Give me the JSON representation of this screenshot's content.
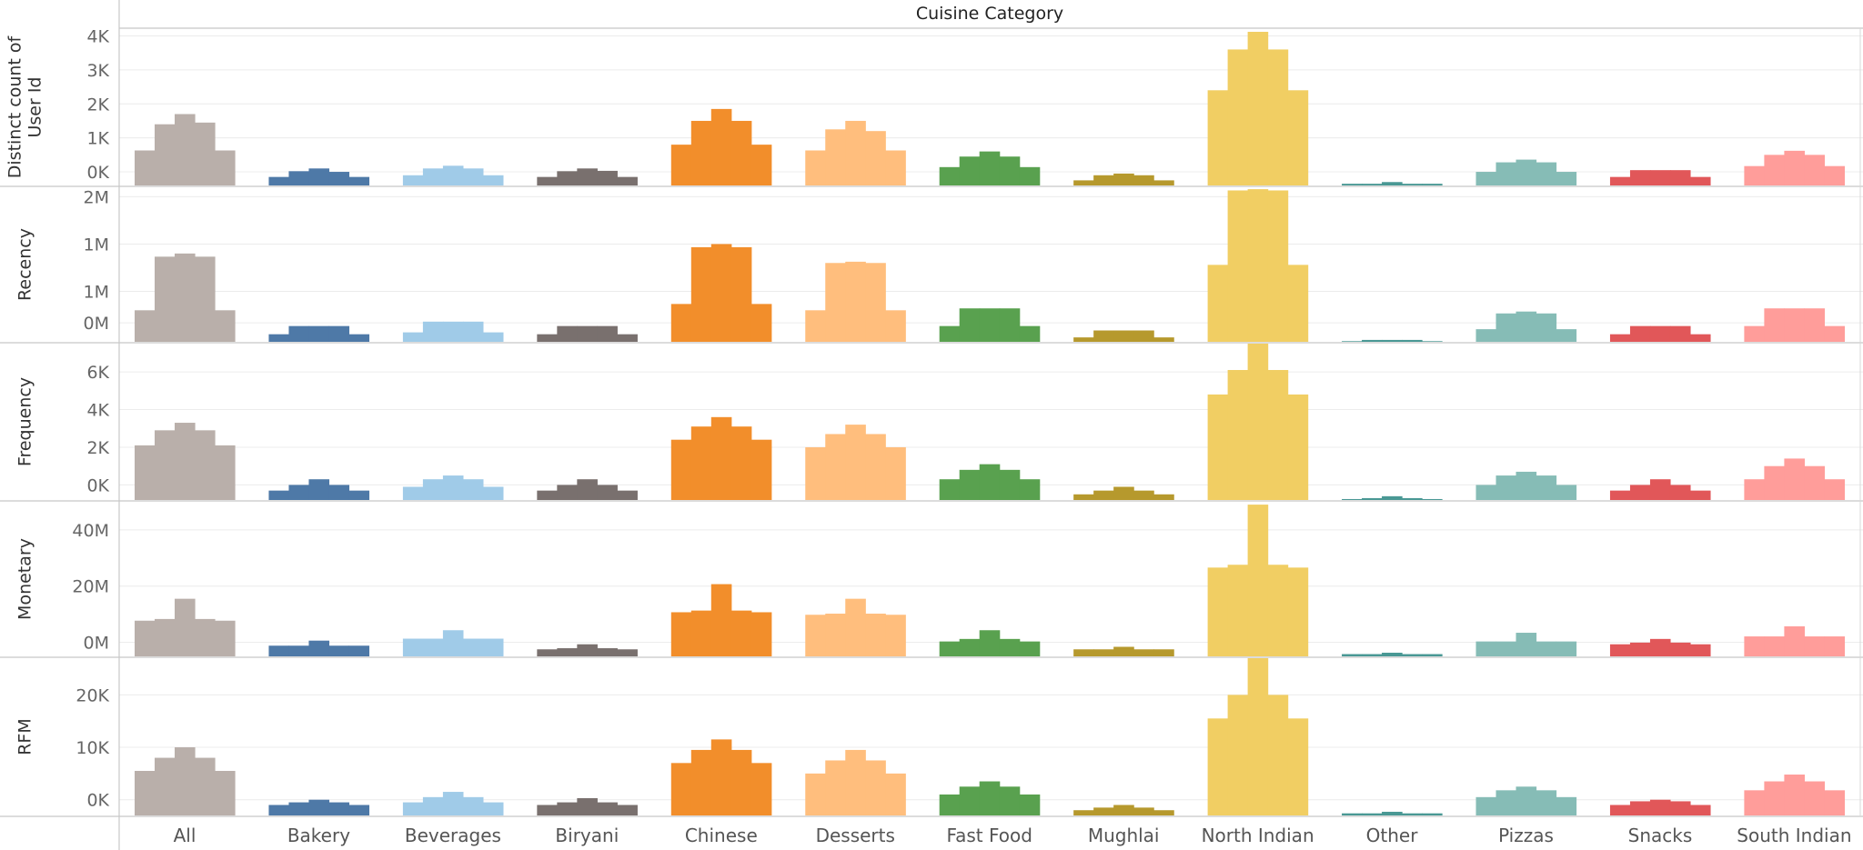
{
  "chart_data": {
    "type": "bar",
    "header": "Cuisine Category",
    "categories": [
      "All",
      "Bakery",
      "Beverages",
      "Biryani",
      "Chinese",
      "Desserts",
      "Fast Food",
      "Mughlai",
      "North Indian",
      "Other",
      "Pizzas",
      "Snacks",
      "South Indian"
    ],
    "colors": [
      "#b9afaa",
      "#4e79a7",
      "#a0cbe8",
      "#79706e",
      "#f28e2b",
      "#ffbe7d",
      "#59a14f",
      "#b6992d",
      "#f1ce63",
      "#499894",
      "#86bcb6",
      "#e15759",
      "#ff9d9a"
    ],
    "bars_per_category": 5,
    "rows": [
      {
        "measure": "Distinct count of User Id",
        "title_lines": [
          "Distinct count of",
          "User Id"
        ],
        "ylim": [
          -0.4,
          4.2
        ],
        "ticks": [
          {
            "value": 0,
            "label": "0K"
          },
          {
            "value": 1,
            "label": "1K"
          },
          {
            "value": 2,
            "label": "2K"
          },
          {
            "value": 3,
            "label": "3K"
          },
          {
            "value": 4,
            "label": "4K"
          }
        ],
        "values": [
          [
            0.63,
            1.4,
            1.7,
            1.45,
            0.63
          ],
          [
            -0.15,
            0.02,
            0.1,
            0.0,
            -0.15
          ],
          [
            -0.1,
            0.1,
            0.18,
            0.1,
            -0.1
          ],
          [
            -0.15,
            0.02,
            0.1,
            0.03,
            -0.15
          ],
          [
            0.8,
            1.5,
            1.85,
            1.5,
            0.8
          ],
          [
            0.63,
            1.25,
            1.5,
            1.2,
            0.63
          ],
          [
            0.14,
            0.45,
            0.6,
            0.45,
            0.14
          ],
          [
            -0.25,
            -0.1,
            -0.05,
            -0.1,
            -0.25
          ],
          [
            2.4,
            3.6,
            4.12,
            3.6,
            2.4
          ],
          [
            -0.35,
            -0.35,
            -0.3,
            -0.35,
            -0.35
          ],
          [
            0.0,
            0.28,
            0.36,
            0.28,
            0.0
          ],
          [
            -0.15,
            0.05,
            0.05,
            0.05,
            -0.15
          ],
          [
            0.17,
            0.5,
            0.62,
            0.5,
            0.17
          ]
        ]
      },
      {
        "measure": "Recency",
        "title_lines": [
          "Recency"
        ],
        "ylim": [
          -0.3,
          2.15
        ],
        "ticks": [
          {
            "value": 0,
            "label": "0M"
          },
          {
            "value": 0.5,
            "label": "1M"
          },
          {
            "value": 1.25,
            "label": "1M"
          },
          {
            "value": 2,
            "label": "2M"
          }
        ],
        "values": [
          [
            0.2,
            1.05,
            1.1,
            1.05,
            0.2
          ],
          [
            -0.18,
            -0.05,
            -0.05,
            -0.05,
            -0.18
          ],
          [
            -0.15,
            0.02,
            0.02,
            0.02,
            -0.15
          ],
          [
            -0.18,
            -0.05,
            -0.05,
            -0.05,
            -0.18
          ],
          [
            0.3,
            1.2,
            1.25,
            1.2,
            0.3
          ],
          [
            0.2,
            0.95,
            0.97,
            0.95,
            0.2
          ],
          [
            -0.05,
            0.23,
            0.23,
            0.23,
            -0.05
          ],
          [
            -0.23,
            -0.12,
            -0.12,
            -0.12,
            -0.23
          ],
          [
            0.92,
            2.1,
            2.12,
            2.1,
            0.92
          ],
          [
            -0.29,
            -0.27,
            -0.27,
            -0.27,
            -0.29
          ],
          [
            -0.1,
            0.15,
            0.18,
            0.15,
            -0.1
          ],
          [
            -0.18,
            -0.05,
            -0.05,
            -0.05,
            -0.18
          ],
          [
            -0.05,
            0.23,
            0.23,
            0.23,
            -0.05
          ]
        ]
      },
      {
        "measure": "Frequency",
        "title_lines": [
          "Frequency"
        ],
        "ylim": [
          -0.8,
          7.5
        ],
        "ticks": [
          {
            "value": 0,
            "label": "0K"
          },
          {
            "value": 2,
            "label": "2K"
          },
          {
            "value": 4,
            "label": "4K"
          },
          {
            "value": 6,
            "label": "6K"
          }
        ],
        "values": [
          [
            2.1,
            2.9,
            3.3,
            2.9,
            2.1
          ],
          [
            -0.3,
            0.0,
            0.3,
            0.0,
            -0.3
          ],
          [
            -0.1,
            0.3,
            0.5,
            0.3,
            -0.1
          ],
          [
            -0.3,
            0.0,
            0.3,
            0.0,
            -0.3
          ],
          [
            2.4,
            3.1,
            3.6,
            3.1,
            2.4
          ],
          [
            2.0,
            2.7,
            3.2,
            2.7,
            2.0
          ],
          [
            0.3,
            0.8,
            1.1,
            0.8,
            0.3
          ],
          [
            -0.5,
            -0.3,
            -0.1,
            -0.3,
            -0.5
          ],
          [
            4.8,
            6.1,
            7.5,
            6.1,
            4.8
          ],
          [
            -0.75,
            -0.7,
            -0.6,
            -0.7,
            -0.75
          ],
          [
            0.0,
            0.5,
            0.7,
            0.5,
            0.0
          ],
          [
            -0.3,
            0.0,
            0.3,
            0.0,
            -0.3
          ],
          [
            0.3,
            1.0,
            1.4,
            1.0,
            0.3
          ]
        ]
      },
      {
        "measure": "Monetary",
        "title_lines": [
          "Monetary"
        ],
        "ylim": [
          -5,
          50
        ],
        "ticks": [
          {
            "value": 0,
            "label": "0M"
          },
          {
            "value": 20,
            "label": "20M"
          },
          {
            "value": 40,
            "label": "40M"
          }
        ],
        "values": [
          [
            7.7,
            8.3,
            15.5,
            8.3,
            7.7
          ],
          [
            -1.2,
            -1.2,
            0.6,
            -1.2,
            -1.2
          ],
          [
            1.3,
            1.3,
            4.3,
            1.3,
            1.3
          ],
          [
            -2.5,
            -2.1,
            -0.7,
            -2.1,
            -2.5
          ],
          [
            10.7,
            11.3,
            20.7,
            11.3,
            10.7
          ],
          [
            9.8,
            10.2,
            15.5,
            10.2,
            9.8
          ],
          [
            0.3,
            1.2,
            4.3,
            1.2,
            0.3
          ],
          [
            -2.5,
            -2.5,
            -1.6,
            -2.5,
            -2.5
          ],
          [
            26.6,
            27.6,
            49.0,
            27.6,
            26.6
          ],
          [
            -4.2,
            -4.2,
            -3.7,
            -4.2,
            -4.2
          ],
          [
            0.3,
            0.3,
            3.4,
            0.3,
            0.3
          ],
          [
            -0.7,
            -0.1,
            1.2,
            -0.1,
            -0.7
          ],
          [
            2.1,
            2.1,
            5.7,
            2.1,
            2.1
          ]
        ]
      },
      {
        "measure": "RFM",
        "title_lines": [
          "RFM"
        ],
        "ylim": [
          -3,
          27
        ],
        "ticks": [
          {
            "value": 0,
            "label": "0K"
          },
          {
            "value": 10,
            "label": "10K"
          },
          {
            "value": 20,
            "label": "20K"
          }
        ],
        "values": [
          [
            5.5,
            8,
            10,
            8,
            5.5
          ],
          [
            -1,
            -0.5,
            0,
            -0.5,
            -1
          ],
          [
            -0.5,
            0.5,
            1.5,
            0.5,
            -0.5
          ],
          [
            -1,
            -0.5,
            0.3,
            -0.5,
            -1
          ],
          [
            7,
            9.5,
            11.5,
            9.5,
            7
          ],
          [
            5,
            7.5,
            9.5,
            7.5,
            5
          ],
          [
            1,
            2.5,
            3.5,
            2.5,
            1
          ],
          [
            -2,
            -1.5,
            -1,
            -1.5,
            -2
          ],
          [
            15.5,
            20,
            27,
            20,
            15.5
          ],
          [
            -2.6,
            -2.6,
            -2.3,
            -2.6,
            -2.6
          ],
          [
            0.5,
            1.8,
            2.5,
            1.8,
            0.5
          ],
          [
            -1,
            -0.3,
            0,
            -0.3,
            -1
          ],
          [
            1.8,
            3.5,
            4.8,
            3.5,
            1.8
          ]
        ]
      }
    ],
    "grid": true,
    "legend": "none"
  }
}
